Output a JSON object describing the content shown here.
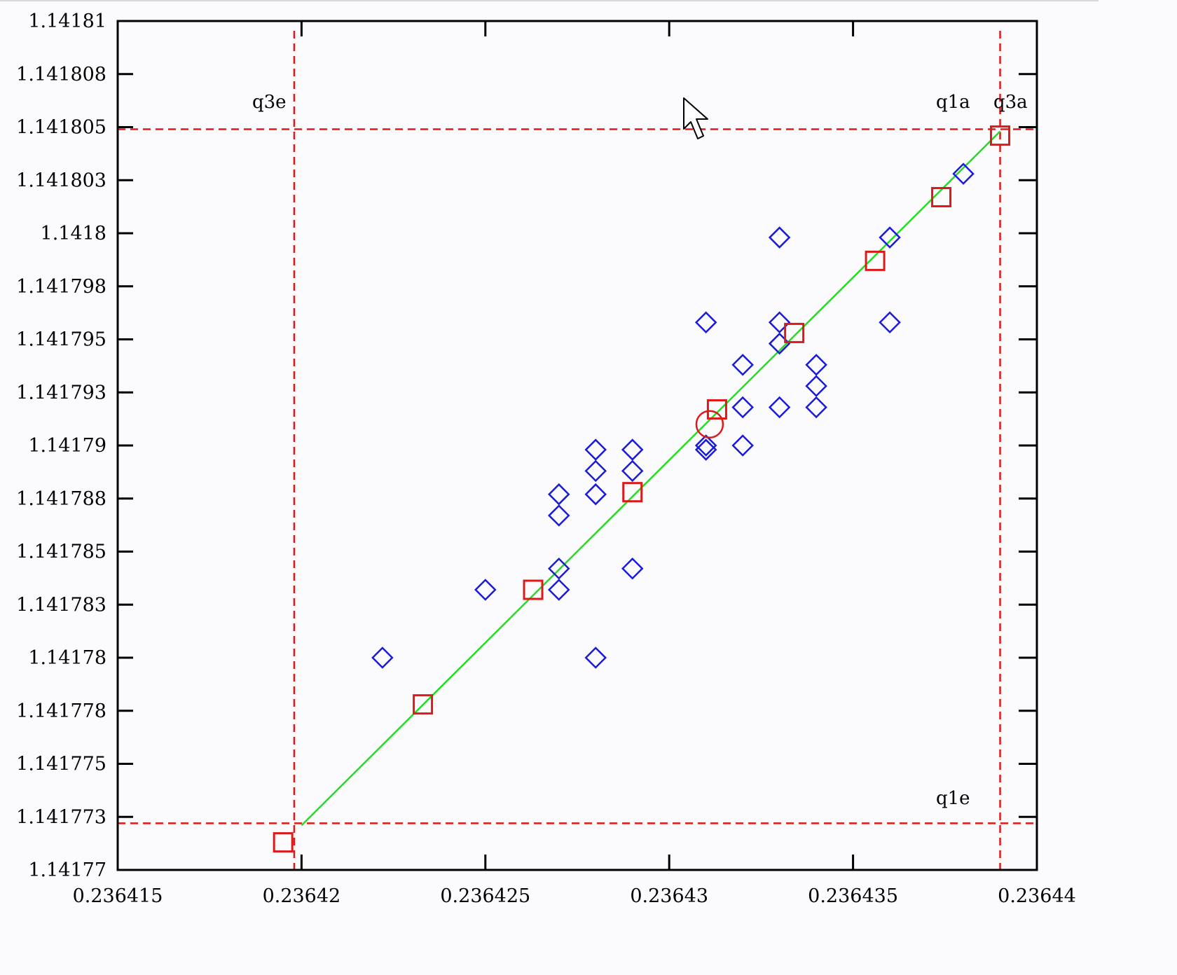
{
  "chart_data": {
    "type": "scatter",
    "title": "",
    "xlabel": "",
    "ylabel": "",
    "xlim": [
      0.236415,
      0.23644
    ],
    "ylim": [
      1.14177,
      1.14181
    ],
    "x_tick_labels": [
      "0.236415",
      "0.23642",
      "0.236425",
      "0.23643",
      "0.236435",
      "0.23644"
    ],
    "x_tick_values": [
      0.236415,
      0.23642,
      0.236425,
      0.23643,
      0.236435,
      0.23644
    ],
    "y_tick_labels": [
      "1.14177",
      "1.141773",
      "1.141775",
      "1.141778",
      "1.14178",
      "1.141783",
      "1.141785",
      "1.141788",
      "1.14179",
      "1.141793",
      "1.141795",
      "1.141798",
      "1.1418",
      "1.141803",
      "1.141805",
      "1.141808",
      "1.14181"
    ],
    "y_tick_values": [
      1.14177,
      1.1417725,
      1.141775,
      1.1417775,
      1.14178,
      1.1417825,
      1.141785,
      1.1417875,
      1.14179,
      1.1417925,
      1.141795,
      1.1417975,
      1.1418,
      1.1418025,
      1.141805,
      1.1418075,
      1.14181
    ],
    "grid": false,
    "colors": {
      "diamonds": "#1a1adc",
      "squares": "#dd1a1a",
      "fit_line": "#22dd22",
      "ref_lines": "#dd1a1a",
      "axes": "#000000",
      "background": "#fbfbfd"
    },
    "series": [
      {
        "marker": "diamond",
        "points": [
          [
            0.2364222,
            1.14178
          ],
          [
            0.236425,
            1.1417832
          ],
          [
            0.236427,
            1.1417877
          ],
          [
            0.236427,
            1.1417867
          ],
          [
            0.236427,
            1.1417842
          ],
          [
            0.236427,
            1.1417832
          ],
          [
            0.236428,
            1.1417898
          ],
          [
            0.236428,
            1.1417888
          ],
          [
            0.236428,
            1.1417877
          ],
          [
            0.236428,
            1.14178
          ],
          [
            0.236429,
            1.1417898
          ],
          [
            0.236429,
            1.1417888
          ],
          [
            0.236429,
            1.1417842
          ],
          [
            0.236431,
            1.1417958
          ],
          [
            0.236431,
            1.14179
          ],
          [
            0.236431,
            1.1417898
          ],
          [
            0.236432,
            1.1417938
          ],
          [
            0.236432,
            1.1417918
          ],
          [
            0.236432,
            1.14179
          ],
          [
            0.236433,
            1.1417998
          ],
          [
            0.236433,
            1.1417958
          ],
          [
            0.236433,
            1.1417948
          ],
          [
            0.236433,
            1.1417918
          ],
          [
            0.236434,
            1.1417938
          ],
          [
            0.236434,
            1.1417928
          ],
          [
            0.236434,
            1.1417918
          ],
          [
            0.236436,
            1.1417998
          ],
          [
            0.236436,
            1.1417958
          ],
          [
            0.236438,
            1.1418028
          ]
        ]
      },
      {
        "marker": "square",
        "points": [
          [
            0.2364195,
            1.1417713
          ],
          [
            0.2364233,
            1.1417778
          ],
          [
            0.2364263,
            1.1417832
          ],
          [
            0.236429,
            1.1417878
          ],
          [
            0.2364313,
            1.1417917
          ],
          [
            0.2364334,
            1.1417953
          ],
          [
            0.2364356,
            1.1417987
          ],
          [
            0.2364374,
            1.1418017
          ],
          [
            0.236439,
            1.1418046
          ]
        ]
      },
      {
        "marker": "circle",
        "points": [
          [
            0.2364311,
            1.141791
          ]
        ]
      },
      {
        "marker": "line",
        "points": [
          [
            0.23642,
            1.1417721
          ],
          [
            0.236439,
            1.1418048
          ]
        ]
      }
    ],
    "reference_lines": {
      "vertical": [
        0.2364198,
        0.236439
      ],
      "horizontal": [
        1.1418049,
        1.1417722
      ]
    },
    "annotations": [
      "q3e",
      "q1a",
      "q3a",
      "q1e"
    ]
  }
}
